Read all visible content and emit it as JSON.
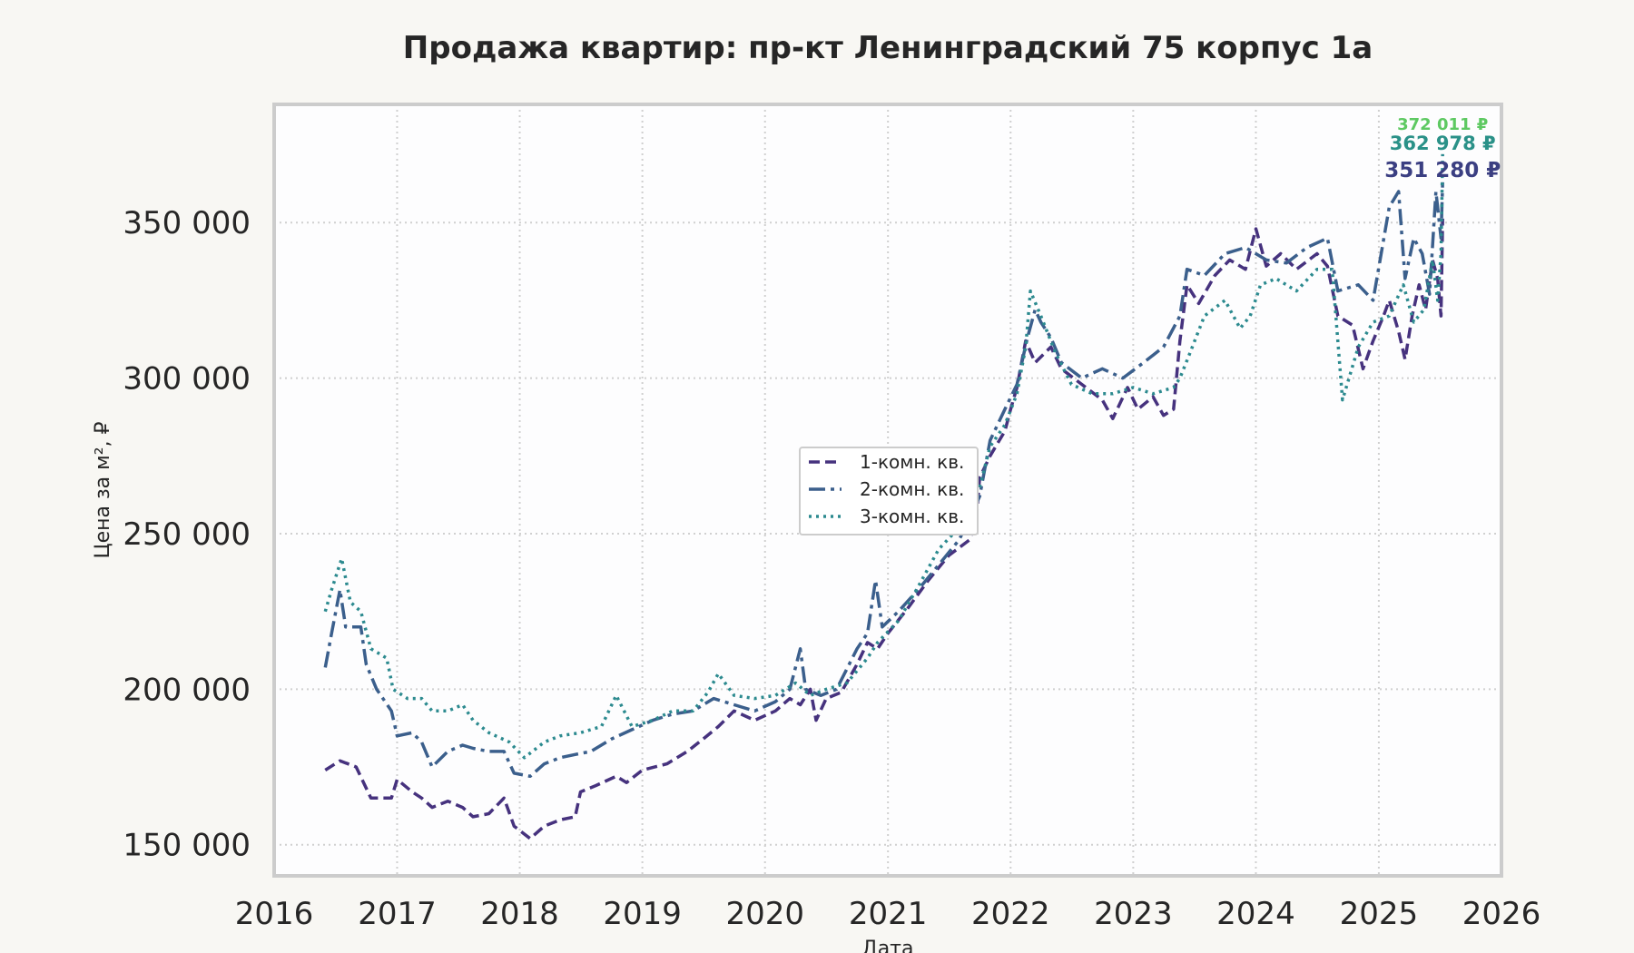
{
  "chart_data": {
    "type": "line",
    "title": "Продажа квартир: пр-кт Ленинградский 75 корпус 1а",
    "xlabel": "Дата",
    "ylabel": "Цена за м², ₽",
    "xlim": [
      "2016-01-01",
      "2026-01-01"
    ],
    "ylim": [
      140000,
      388000
    ],
    "x_ticks": [
      "2016",
      "2017",
      "2018",
      "2019",
      "2020",
      "2021",
      "2022",
      "2023",
      "2024",
      "2025",
      "2026"
    ],
    "y_ticks": [
      150000,
      200000,
      250000,
      300000,
      350000
    ],
    "y_tick_labels": [
      "150 000",
      "200 000",
      "250 000",
      "300 000",
      "350 000"
    ],
    "grid": true,
    "legend_position": "center",
    "colors": {
      "background": "#f8f7f3",
      "plot_bg": "#fdfdfe",
      "frame": "#cccccc",
      "grid": "#d0d0d0"
    },
    "series": [
      {
        "name": "1-комн. кв.",
        "color": "#46327e",
        "dash": "dashed",
        "end_label": "351 280 ₽",
        "end_label_color": "#3b3f82",
        "points": [
          [
            "2016-06-01",
            174000
          ],
          [
            "2016-07-15",
            177000
          ],
          [
            "2016-09-01",
            175000
          ],
          [
            "2016-10-15",
            165000
          ],
          [
            "2016-12-15",
            165000
          ],
          [
            "2017-01-01",
            171000
          ],
          [
            "2017-02-15",
            167000
          ],
          [
            "2017-03-15",
            165000
          ],
          [
            "2017-04-15",
            162000
          ],
          [
            "2017-06-01",
            164000
          ],
          [
            "2017-07-15",
            162000
          ],
          [
            "2017-08-15",
            159000
          ],
          [
            "2017-10-01",
            160000
          ],
          [
            "2017-11-15",
            165000
          ],
          [
            "2017-12-15",
            156000
          ],
          [
            "2018-02-01",
            152000
          ],
          [
            "2018-03-15",
            156000
          ],
          [
            "2018-05-01",
            158000
          ],
          [
            "2018-06-15",
            159000
          ],
          [
            "2018-07-01",
            167000
          ],
          [
            "2018-08-15",
            169000
          ],
          [
            "2018-10-15",
            172000
          ],
          [
            "2018-11-15",
            170000
          ],
          [
            "2019-01-01",
            174000
          ],
          [
            "2019-03-15",
            176000
          ],
          [
            "2019-05-15",
            180000
          ],
          [
            "2019-07-01",
            184000
          ],
          [
            "2019-08-15",
            188000
          ],
          [
            "2019-10-01",
            193000
          ],
          [
            "2019-12-01",
            190000
          ],
          [
            "2020-02-01",
            193000
          ],
          [
            "2020-03-15",
            197000
          ],
          [
            "2020-04-15",
            195000
          ],
          [
            "2020-05-15",
            200000
          ],
          [
            "2020-06-01",
            190000
          ],
          [
            "2020-07-01",
            197000
          ],
          [
            "2020-08-15",
            199000
          ],
          [
            "2020-10-01",
            208000
          ],
          [
            "2020-11-01",
            215000
          ],
          [
            "2020-12-01",
            213000
          ],
          [
            "2021-01-01",
            218000
          ],
          [
            "2021-03-01",
            226000
          ],
          [
            "2021-05-01",
            235000
          ],
          [
            "2021-07-01",
            243000
          ],
          [
            "2021-09-01",
            248000
          ],
          [
            "2021-09-20",
            254000
          ],
          [
            "2021-10-01",
            268000
          ],
          [
            "2021-11-01",
            275000
          ],
          [
            "2021-12-15",
            283000
          ],
          [
            "2022-01-01",
            290000
          ],
          [
            "2022-01-20",
            297000
          ],
          [
            "2022-02-15",
            312000
          ],
          [
            "2022-03-15",
            305000
          ],
          [
            "2022-05-01",
            310000
          ],
          [
            "2022-06-01",
            303000
          ],
          [
            "2022-08-01",
            298000
          ],
          [
            "2022-10-01",
            293000
          ],
          [
            "2022-11-01",
            287000
          ],
          [
            "2022-12-15",
            297000
          ],
          [
            "2023-01-15",
            290000
          ],
          [
            "2023-03-01",
            294000
          ],
          [
            "2023-04-01",
            288000
          ],
          [
            "2023-05-01",
            290000
          ],
          [
            "2023-05-20",
            312000
          ],
          [
            "2023-06-10",
            330000
          ],
          [
            "2023-07-15",
            324000
          ],
          [
            "2023-09-01",
            333000
          ],
          [
            "2023-10-15",
            338000
          ],
          [
            "2023-12-01",
            335000
          ],
          [
            "2024-01-01",
            348000
          ],
          [
            "2024-02-01",
            336000
          ],
          [
            "2024-03-15",
            340000
          ],
          [
            "2024-05-01",
            335000
          ],
          [
            "2024-07-01",
            340000
          ],
          [
            "2024-08-01",
            336000
          ],
          [
            "2024-09-01",
            320000
          ],
          [
            "2024-10-15",
            317000
          ],
          [
            "2024-11-15",
            303000
          ],
          [
            "2024-12-15",
            312000
          ],
          [
            "2025-01-15",
            320000
          ],
          [
            "2025-02-01",
            325000
          ],
          [
            "2025-03-01",
            315000
          ],
          [
            "2025-03-20",
            306000
          ],
          [
            "2025-04-10",
            320000
          ],
          [
            "2025-05-01",
            330000
          ],
          [
            "2025-05-20",
            322000
          ],
          [
            "2025-06-10",
            338000
          ],
          [
            "2025-06-25",
            332000
          ],
          [
            "2025-07-05",
            320000
          ],
          [
            "2025-07-10",
            351280
          ]
        ]
      },
      {
        "name": "2-комн. кв.",
        "color": "#3b5f8c",
        "dash": "dashdot",
        "end_label": "362 978 ₽",
        "end_label_color": "#2a9188",
        "points": [
          [
            "2016-06-01",
            207000
          ],
          [
            "2016-06-20",
            218000
          ],
          [
            "2016-07-15",
            232000
          ],
          [
            "2016-08-01",
            220000
          ],
          [
            "2016-09-15",
            220000
          ],
          [
            "2016-10-01",
            208000
          ],
          [
            "2016-11-01",
            200000
          ],
          [
            "2016-12-15",
            193000
          ],
          [
            "2017-01-01",
            185000
          ],
          [
            "2017-02-15",
            186000
          ],
          [
            "2017-03-15",
            183000
          ],
          [
            "2017-04-15",
            175000
          ],
          [
            "2017-06-01",
            180000
          ],
          [
            "2017-07-15",
            182000
          ],
          [
            "2017-08-15",
            181000
          ],
          [
            "2017-10-01",
            180000
          ],
          [
            "2017-11-15",
            180000
          ],
          [
            "2017-12-15",
            173000
          ],
          [
            "2018-02-01",
            172000
          ],
          [
            "2018-03-15",
            176000
          ],
          [
            "2018-05-01",
            178000
          ],
          [
            "2018-06-15",
            179000
          ],
          [
            "2018-08-01",
            180000
          ],
          [
            "2018-10-01",
            184000
          ],
          [
            "2018-12-01",
            187000
          ],
          [
            "2019-02-01",
            190000
          ],
          [
            "2019-04-01",
            192000
          ],
          [
            "2019-06-01",
            193000
          ],
          [
            "2019-08-01",
            197000
          ],
          [
            "2019-10-01",
            195000
          ],
          [
            "2019-12-01",
            193000
          ],
          [
            "2020-02-01",
            196000
          ],
          [
            "2020-03-15",
            200000
          ],
          [
            "2020-04-15",
            213000
          ],
          [
            "2020-05-01",
            200000
          ],
          [
            "2020-06-15",
            198000
          ],
          [
            "2020-08-01",
            200000
          ],
          [
            "2020-10-01",
            213000
          ],
          [
            "2020-11-01",
            218000
          ],
          [
            "2020-11-25",
            235000
          ],
          [
            "2020-12-15",
            220000
          ],
          [
            "2021-02-01",
            225000
          ],
          [
            "2021-04-01",
            232000
          ],
          [
            "2021-06-01",
            240000
          ],
          [
            "2021-08-01",
            248000
          ],
          [
            "2021-10-01",
            262000
          ],
          [
            "2021-11-01",
            280000
          ],
          [
            "2021-12-15",
            290000
          ],
          [
            "2022-01-20",
            298000
          ],
          [
            "2022-02-20",
            313000
          ],
          [
            "2022-03-15",
            322000
          ],
          [
            "2022-04-01",
            318000
          ],
          [
            "2022-05-01",
            313000
          ],
          [
            "2022-06-01",
            305000
          ],
          [
            "2022-08-01",
            300000
          ],
          [
            "2022-10-01",
            303000
          ],
          [
            "2022-12-01",
            300000
          ],
          [
            "2023-02-01",
            305000
          ],
          [
            "2023-04-01",
            310000
          ],
          [
            "2023-05-20",
            320000
          ],
          [
            "2023-06-10",
            335000
          ],
          [
            "2023-08-01",
            333000
          ],
          [
            "2023-10-01",
            340000
          ],
          [
            "2023-12-01",
            342000
          ],
          [
            "2024-02-01",
            338000
          ],
          [
            "2024-04-01",
            337000
          ],
          [
            "2024-06-01",
            342000
          ],
          [
            "2024-08-01",
            345000
          ],
          [
            "2024-09-01",
            328000
          ],
          [
            "2024-11-01",
            330000
          ],
          [
            "2024-12-15",
            325000
          ],
          [
            "2025-02-01",
            355000
          ],
          [
            "2025-03-01",
            360000
          ],
          [
            "2025-03-20",
            332000
          ],
          [
            "2025-04-15",
            345000
          ],
          [
            "2025-05-10",
            340000
          ],
          [
            "2025-06-01",
            327000
          ],
          [
            "2025-06-20",
            360000
          ],
          [
            "2025-07-05",
            345000
          ],
          [
            "2025-07-10",
            362978
          ]
        ]
      },
      {
        "name": "3-комн. кв.",
        "color": "#2c8a8f",
        "dash": "dotted",
        "end_label": "372 011 ₽",
        "end_label_color": "#5ec962",
        "points": [
          [
            "2016-06-01",
            225000
          ],
          [
            "2016-06-20",
            232000
          ],
          [
            "2016-07-20",
            242000
          ],
          [
            "2016-08-15",
            228000
          ],
          [
            "2016-09-15",
            225000
          ],
          [
            "2016-10-15",
            213000
          ],
          [
            "2016-12-01",
            210000
          ],
          [
            "2016-12-20",
            200000
          ],
          [
            "2017-02-01",
            197000
          ],
          [
            "2017-03-15",
            197000
          ],
          [
            "2017-04-15",
            193000
          ],
          [
            "2017-06-01",
            193000
          ],
          [
            "2017-07-15",
            195000
          ],
          [
            "2017-08-15",
            190000
          ],
          [
            "2017-10-01",
            186000
          ],
          [
            "2017-12-01",
            183000
          ],
          [
            "2018-01-15",
            178000
          ],
          [
            "2018-03-15",
            183000
          ],
          [
            "2018-05-01",
            185000
          ],
          [
            "2018-07-01",
            186000
          ],
          [
            "2018-09-01",
            188000
          ],
          [
            "2018-10-15",
            198000
          ],
          [
            "2018-12-01",
            188000
          ],
          [
            "2019-02-01",
            190000
          ],
          [
            "2019-04-01",
            193000
          ],
          [
            "2019-06-01",
            193000
          ],
          [
            "2019-07-15",
            199000
          ],
          [
            "2019-08-15",
            205000
          ],
          [
            "2019-10-01",
            198000
          ],
          [
            "2019-12-01",
            197000
          ],
          [
            "2020-02-01",
            198000
          ],
          [
            "2020-04-01",
            202000
          ],
          [
            "2020-05-15",
            198000
          ],
          [
            "2020-07-01",
            200000
          ],
          [
            "2020-09-01",
            202000
          ],
          [
            "2020-11-01",
            210000
          ],
          [
            "2020-12-01",
            215000
          ],
          [
            "2021-02-01",
            222000
          ],
          [
            "2021-04-01",
            233000
          ],
          [
            "2021-06-01",
            245000
          ],
          [
            "2021-08-01",
            252000
          ],
          [
            "2021-10-01",
            265000
          ],
          [
            "2021-11-01",
            278000
          ],
          [
            "2021-12-15",
            285000
          ],
          [
            "2022-01-20",
            295000
          ],
          [
            "2022-02-15",
            310000
          ],
          [
            "2022-03-01",
            328000
          ],
          [
            "2022-04-01",
            320000
          ],
          [
            "2022-05-15",
            308000
          ],
          [
            "2022-07-01",
            298000
          ],
          [
            "2022-09-01",
            295000
          ],
          [
            "2022-11-01",
            295000
          ],
          [
            "2023-01-01",
            297000
          ],
          [
            "2023-03-01",
            295000
          ],
          [
            "2023-05-01",
            297000
          ],
          [
            "2023-05-20",
            300000
          ],
          [
            "2023-06-15",
            307000
          ],
          [
            "2023-08-01",
            320000
          ],
          [
            "2023-10-01",
            325000
          ],
          [
            "2023-11-15",
            316000
          ],
          [
            "2023-12-15",
            320000
          ],
          [
            "2024-01-15",
            330000
          ],
          [
            "2024-03-01",
            332000
          ],
          [
            "2024-05-01",
            328000
          ],
          [
            "2024-07-01",
            335000
          ],
          [
            "2024-08-15",
            335000
          ],
          [
            "2024-09-15",
            293000
          ],
          [
            "2024-11-01",
            310000
          ],
          [
            "2024-12-15",
            318000
          ],
          [
            "2025-02-01",
            320000
          ],
          [
            "2025-03-15",
            330000
          ],
          [
            "2025-04-15",
            318000
          ],
          [
            "2025-05-15",
            322000
          ],
          [
            "2025-06-10",
            338000
          ],
          [
            "2025-06-25",
            325000
          ],
          [
            "2025-07-05",
            340000
          ],
          [
            "2025-07-10",
            372011
          ]
        ]
      }
    ]
  }
}
